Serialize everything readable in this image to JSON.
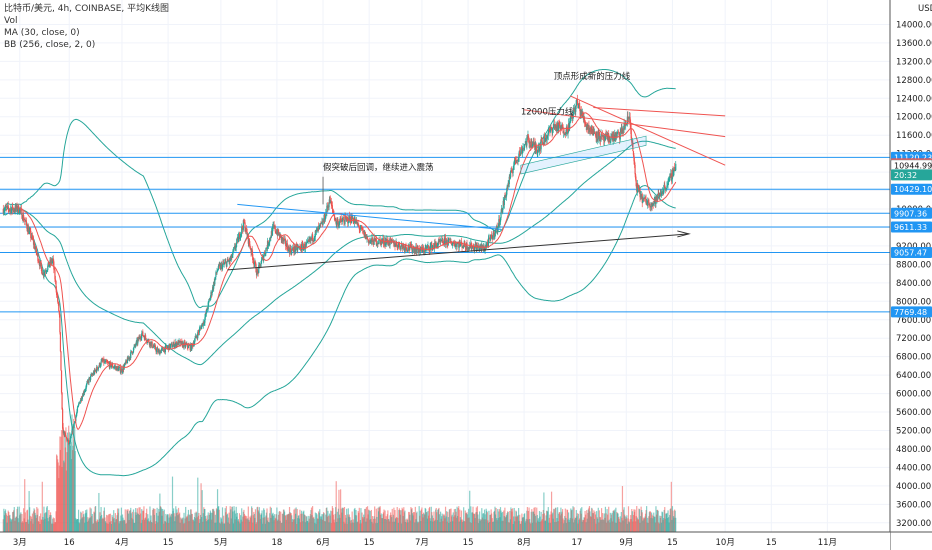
{
  "legend": {
    "title": "比特币/美元, 4h, COINBASE, 平均K线图",
    "volume": "Vol",
    "ma": "MA (30, close, 0)",
    "bb": "BB (256, close, 2, 0)",
    "currency": "USD"
  },
  "chart_data": {
    "type": "candlestick",
    "title": "比特币/美元, 4h, COINBASE, 平均K线图",
    "ylabel": "USD",
    "ylim": [
      3000,
      14400
    ],
    "y_ticks": [
      3200,
      3600,
      4000,
      4400,
      4800,
      5200,
      5600,
      6000,
      6400,
      6800,
      7200,
      7600,
      8000,
      8400,
      8800,
      9200,
      9600,
      10000,
      10400,
      10800,
      11200,
      11600,
      12000,
      12400,
      12800,
      13200,
      13600,
      14000
    ],
    "x_ticks": [
      "3月",
      "16",
      "4月",
      "15",
      "5月",
      "18",
      "6月",
      "15",
      "7月",
      "15",
      "8月",
      "17",
      "9月",
      "15",
      "10月",
      "15",
      "11月"
    ],
    "price_path": [
      {
        "x": "03-01",
        "y": 10000
      },
      {
        "x": "03-05",
        "y": 9300
      },
      {
        "x": "03-08",
        "y": 8600
      },
      {
        "x": "03-11",
        "y": 8900
      },
      {
        "x": "03-13",
        "y": 7700
      },
      {
        "x": "03-14",
        "y": 5200
      },
      {
        "x": "03-16",
        "y": 4900
      },
      {
        "x": "03-19",
        "y": 5800
      },
      {
        "x": "03-22",
        "y": 6300
      },
      {
        "x": "03-26",
        "y": 6700
      },
      {
        "x": "04-01",
        "y": 6500
      },
      {
        "x": "04-07",
        "y": 7300
      },
      {
        "x": "04-12",
        "y": 6900
      },
      {
        "x": "04-18",
        "y": 7100
      },
      {
        "x": "04-22",
        "y": 7000
      },
      {
        "x": "04-26",
        "y": 7600
      },
      {
        "x": "04-30",
        "y": 8700
      },
      {
        "x": "05-04",
        "y": 8900
      },
      {
        "x": "05-08",
        "y": 9700
      },
      {
        "x": "05-12",
        "y": 8600
      },
      {
        "x": "05-17",
        "y": 9600
      },
      {
        "x": "05-22",
        "y": 9100
      },
      {
        "x": "05-27",
        "y": 9200
      },
      {
        "x": "06-01",
        "y": 9700
      },
      {
        "x": "06-03",
        "y": 10200
      },
      {
        "x": "06-05",
        "y": 9700
      },
      {
        "x": "06-10",
        "y": 9800
      },
      {
        "x": "06-15",
        "y": 9300
      },
      {
        "x": "06-20",
        "y": 9300
      },
      {
        "x": "06-25",
        "y": 9200
      },
      {
        "x": "07-01",
        "y": 9100
      },
      {
        "x": "07-08",
        "y": 9300
      },
      {
        "x": "07-15",
        "y": 9200
      },
      {
        "x": "07-20",
        "y": 9150
      },
      {
        "x": "07-24",
        "y": 9600
      },
      {
        "x": "07-27",
        "y": 10500
      },
      {
        "x": "07-29",
        "y": 11000
      },
      {
        "x": "08-02",
        "y": 11500
      },
      {
        "x": "08-05",
        "y": 11300
      },
      {
        "x": "08-10",
        "y": 11800
      },
      {
        "x": "08-14",
        "y": 11700
      },
      {
        "x": "08-17",
        "y": 12300
      },
      {
        "x": "08-20",
        "y": 11800
      },
      {
        "x": "08-25",
        "y": 11500
      },
      {
        "x": "08-30",
        "y": 11600
      },
      {
        "x": "09-02",
        "y": 12000
      },
      {
        "x": "09-04",
        "y": 10500
      },
      {
        "x": "09-06",
        "y": 10200
      },
      {
        "x": "09-09",
        "y": 10100
      },
      {
        "x": "09-12",
        "y": 10400
      },
      {
        "x": "09-14",
        "y": 10600
      },
      {
        "x": "09-16",
        "y": 10950
      }
    ],
    "price_lines": [
      11120.23,
      10979.0,
      10944.99,
      10429.1,
      9907.36,
      9611.33,
      9057.47,
      7769.48
    ],
    "price_badges": [
      {
        "label": "11120.23",
        "value": 11120.23,
        "color": "#2196f3"
      },
      {
        "label": "10979.00",
        "value": 10979.0,
        "color": "#ef5350"
      },
      {
        "label": "10944.99",
        "value": 10944.99,
        "color": "#ffffff"
      },
      {
        "label": "20:32",
        "value": 10740,
        "color": "#26a69a"
      },
      {
        "label": "10429.10",
        "value": 10429.1,
        "color": "#2196f3"
      },
      {
        "label": "9907.36",
        "value": 9907.36,
        "color": "#2196f3"
      },
      {
        "label": "9611.33",
        "value": 9611.33,
        "color": "#2196f3"
      },
      {
        "label": "9057.47",
        "value": 9057.47,
        "color": "#2196f3"
      },
      {
        "label": "7769.48",
        "value": 7769.48,
        "color": "#2196f3"
      }
    ],
    "annotations": [
      {
        "text": "假突破后回调，继续进入震荡"
      },
      {
        "text": "顶点形成新的压力线"
      },
      {
        "text": "12000压力线"
      }
    ],
    "colors": {
      "up": "#26a69a",
      "down": "#ef5350",
      "ma": "#ef5350",
      "bb": "#26a69a",
      "hline": "#2196f3",
      "resist": "#ef5350",
      "trend": "#333333"
    }
  }
}
